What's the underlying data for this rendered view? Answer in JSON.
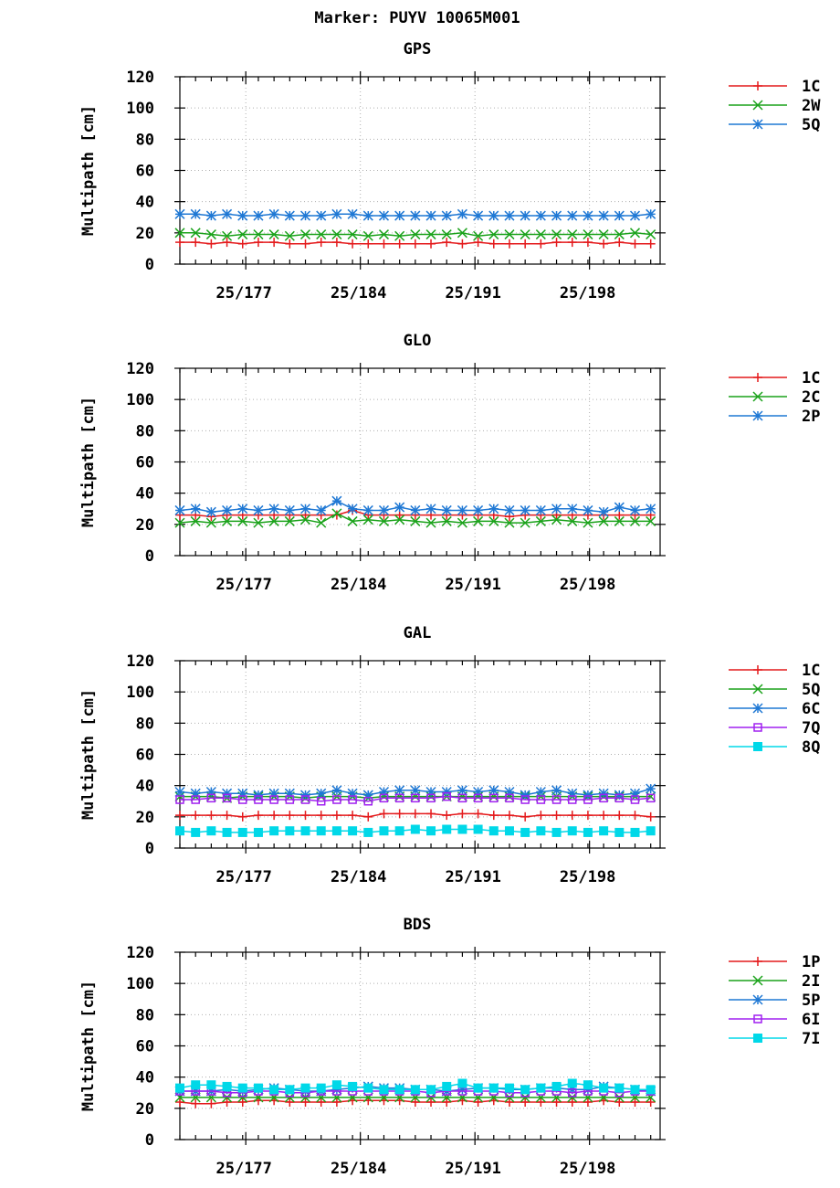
{
  "title": "Marker: PUYV 10065M001",
  "chart_data": [
    {
      "type": "line",
      "title": "GPS",
      "ylabel": "Multipath [cm]",
      "ylim": [
        0,
        120
      ],
      "yticks": [
        0,
        20,
        40,
        60,
        80,
        100,
        120
      ],
      "xlim": [
        172,
        202.6
      ],
      "xticks": [
        {
          "value": 176.2,
          "label": "25/177"
        },
        {
          "value": 183.5,
          "label": "25/184"
        },
        {
          "value": 190.8,
          "label": "25/191"
        },
        {
          "value": 198.1,
          "label": "25/198"
        }
      ],
      "grid": true,
      "legend": "right",
      "x": [
        172,
        173,
        174,
        175,
        176,
        177,
        178,
        179,
        180,
        181,
        182,
        183,
        184,
        185,
        186,
        187,
        188,
        189,
        190,
        191,
        192,
        193,
        194,
        195,
        196,
        197,
        198,
        199,
        200,
        201,
        202
      ],
      "series": [
        {
          "name": "1C",
          "color": "#e41a1c",
          "marker": "plus",
          "values": [
            14,
            14,
            13,
            14,
            13,
            14,
            14,
            13,
            13,
            14,
            14,
            13,
            13,
            13,
            13,
            13,
            13,
            14,
            13,
            14,
            13,
            13,
            13,
            13,
            14,
            14,
            14,
            13,
            14,
            13,
            13
          ]
        },
        {
          "name": "2W",
          "color": "#1aa21a",
          "marker": "x",
          "values": [
            20,
            20,
            19,
            18,
            19,
            19,
            19,
            18,
            19,
            19,
            19,
            19,
            18,
            19,
            18,
            19,
            19,
            19,
            20,
            18,
            19,
            19,
            19,
            19,
            19,
            19,
            19,
            19,
            19,
            20,
            19
          ]
        },
        {
          "name": "5Q",
          "color": "#1f78d4",
          "marker": "star",
          "values": [
            32,
            32,
            31,
            32,
            31,
            31,
            32,
            31,
            31,
            31,
            32,
            32,
            31,
            31,
            31,
            31,
            31,
            31,
            32,
            31,
            31,
            31,
            31,
            31,
            31,
            31,
            31,
            31,
            31,
            31,
            32
          ]
        }
      ]
    },
    {
      "type": "line",
      "title": "GLO",
      "ylabel": "Multipath [cm]",
      "ylim": [
        0,
        120
      ],
      "yticks": [
        0,
        20,
        40,
        60,
        80,
        100,
        120
      ],
      "xlim": [
        172,
        202.6
      ],
      "xticks": [
        {
          "value": 176.2,
          "label": "25/177"
        },
        {
          "value": 183.5,
          "label": "25/184"
        },
        {
          "value": 190.8,
          "label": "25/191"
        },
        {
          "value": 198.1,
          "label": "25/198"
        }
      ],
      "grid": true,
      "legend": "right",
      "x": [
        172,
        173,
        174,
        175,
        176,
        177,
        178,
        179,
        180,
        181,
        182,
        183,
        184,
        185,
        186,
        187,
        188,
        189,
        190,
        191,
        192,
        193,
        194,
        195,
        196,
        197,
        198,
        199,
        200,
        201,
        202
      ],
      "series": [
        {
          "name": "1C",
          "color": "#e41a1c",
          "marker": "plus",
          "values": [
            26,
            26,
            25,
            26,
            26,
            26,
            26,
            26,
            26,
            26,
            26,
            29,
            26,
            26,
            26,
            26,
            26,
            26,
            26,
            26,
            26,
            25,
            26,
            26,
            26,
            26,
            26,
            26,
            26,
            26,
            26
          ]
        },
        {
          "name": "2C",
          "color": "#1aa21a",
          "marker": "x",
          "values": [
            21,
            22,
            21,
            22,
            22,
            21,
            22,
            22,
            23,
            21,
            27,
            22,
            23,
            22,
            23,
            22,
            21,
            22,
            21,
            22,
            22,
            21,
            21,
            22,
            23,
            22,
            21,
            22,
            22,
            22,
            22
          ]
        },
        {
          "name": "2P",
          "color": "#1f78d4",
          "marker": "star",
          "values": [
            29,
            30,
            28,
            29,
            30,
            29,
            30,
            29,
            30,
            29,
            35,
            30,
            29,
            29,
            31,
            29,
            30,
            29,
            29,
            29,
            30,
            29,
            29,
            29,
            30,
            30,
            29,
            28,
            31,
            29,
            30
          ]
        }
      ]
    },
    {
      "type": "line",
      "title": "GAL",
      "ylabel": "Multipath [cm]",
      "ylim": [
        0,
        120
      ],
      "yticks": [
        0,
        20,
        40,
        60,
        80,
        100,
        120
      ],
      "xlim": [
        172,
        202.6
      ],
      "xticks": [
        {
          "value": 176.2,
          "label": "25/177"
        },
        {
          "value": 183.5,
          "label": "25/184"
        },
        {
          "value": 190.8,
          "label": "25/191"
        },
        {
          "value": 198.1,
          "label": "25/198"
        }
      ],
      "grid": true,
      "legend": "right",
      "x": [
        172,
        173,
        174,
        175,
        176,
        177,
        178,
        179,
        180,
        181,
        182,
        183,
        184,
        185,
        186,
        187,
        188,
        189,
        190,
        191,
        192,
        193,
        194,
        195,
        196,
        197,
        198,
        199,
        200,
        201,
        202
      ],
      "series": [
        {
          "name": "1C",
          "color": "#e41a1c",
          "marker": "plus",
          "values": [
            21,
            21,
            21,
            21,
            20,
            21,
            21,
            21,
            21,
            21,
            21,
            21,
            20,
            22,
            22,
            22,
            22,
            21,
            22,
            22,
            21,
            21,
            20,
            21,
            21,
            21,
            21,
            21,
            21,
            21,
            20
          ]
        },
        {
          "name": "5Q",
          "color": "#1aa21a",
          "marker": "x",
          "values": [
            33,
            33,
            33,
            32,
            33,
            33,
            33,
            33,
            32,
            33,
            33,
            33,
            32,
            33,
            33,
            33,
            33,
            33,
            33,
            33,
            33,
            33,
            33,
            33,
            33,
            33,
            33,
            33,
            33,
            33,
            33
          ]
        },
        {
          "name": "6C",
          "color": "#1f78d4",
          "marker": "star",
          "values": [
            36,
            35,
            36,
            35,
            35,
            34,
            35,
            35,
            34,
            35,
            37,
            35,
            34,
            36,
            37,
            37,
            36,
            36,
            37,
            36,
            37,
            36,
            34,
            36,
            37,
            35,
            34,
            35,
            34,
            35,
            38
          ]
        },
        {
          "name": "7Q",
          "color": "#a020f0",
          "marker": "square",
          "values": [
            31,
            31,
            32,
            32,
            31,
            31,
            31,
            31,
            31,
            30,
            31,
            31,
            30,
            32,
            32,
            32,
            32,
            33,
            32,
            32,
            32,
            32,
            31,
            31,
            31,
            31,
            31,
            32,
            32,
            31,
            32
          ]
        },
        {
          "name": "8Q",
          "color": "#00d8e8",
          "marker": "filled-square",
          "values": [
            11,
            10,
            11,
            10,
            10,
            10,
            11,
            11,
            11,
            11,
            11,
            11,
            10,
            11,
            11,
            12,
            11,
            12,
            12,
            12,
            11,
            11,
            10,
            11,
            10,
            11,
            10,
            11,
            10,
            10,
            11
          ]
        }
      ]
    },
    {
      "type": "line",
      "title": "BDS",
      "ylabel": "Multipath [cm]",
      "ylim": [
        0,
        120
      ],
      "yticks": [
        0,
        20,
        40,
        60,
        80,
        100,
        120
      ],
      "xlim": [
        172,
        202.6
      ],
      "xticks": [
        {
          "value": 176.2,
          "label": "25/177"
        },
        {
          "value": 183.5,
          "label": "25/184"
        },
        {
          "value": 190.8,
          "label": "25/191"
        },
        {
          "value": 198.1,
          "label": "25/198"
        }
      ],
      "grid": true,
      "legend": "right",
      "x": [
        172,
        173,
        174,
        175,
        176,
        177,
        178,
        179,
        180,
        181,
        182,
        183,
        184,
        185,
        186,
        187,
        188,
        189,
        190,
        191,
        192,
        193,
        194,
        195,
        196,
        197,
        198,
        199,
        200,
        201,
        202
      ],
      "series": [
        {
          "name": "1P",
          "color": "#e41a1c",
          "marker": "plus",
          "values": [
            24,
            23,
            23,
            24,
            24,
            25,
            25,
            24,
            24,
            24,
            24,
            25,
            25,
            25,
            25,
            24,
            24,
            24,
            25,
            24,
            25,
            24,
            24,
            24,
            24,
            24,
            24,
            25,
            24,
            24,
            24
          ]
        },
        {
          "name": "2I",
          "color": "#1aa21a",
          "marker": "x",
          "values": [
            27,
            27,
            27,
            27,
            27,
            27,
            27,
            27,
            27,
            27,
            27,
            27,
            27,
            27,
            27,
            27,
            27,
            27,
            27,
            27,
            27,
            27,
            27,
            27,
            27,
            27,
            27,
            27,
            27,
            27,
            27
          ]
        },
        {
          "name": "5P",
          "color": "#1f78d4",
          "marker": "star",
          "values": [
            31,
            31,
            31,
            32,
            31,
            32,
            33,
            32,
            31,
            31,
            32,
            33,
            34,
            33,
            33,
            32,
            32,
            31,
            32,
            33,
            33,
            32,
            32,
            33,
            33,
            32,
            32,
            34,
            33,
            32,
            31
          ]
        },
        {
          "name": "6I",
          "color": "#a020f0",
          "marker": "square",
          "values": [
            31,
            31,
            31,
            30,
            30,
            31,
            31,
            30,
            30,
            31,
            31,
            31,
            31,
            31,
            31,
            31,
            30,
            31,
            31,
            31,
            31,
            30,
            30,
            31,
            31,
            30,
            31,
            31,
            30,
            31,
            31
          ]
        },
        {
          "name": "7I",
          "color": "#00d8e8",
          "marker": "filled-square",
          "values": [
            33,
            35,
            35,
            34,
            33,
            33,
            32,
            32,
            33,
            33,
            35,
            34,
            33,
            32,
            32,
            32,
            32,
            34,
            36,
            33,
            33,
            33,
            32,
            33,
            34,
            36,
            35,
            33,
            33,
            32,
            32
          ]
        }
      ]
    }
  ]
}
